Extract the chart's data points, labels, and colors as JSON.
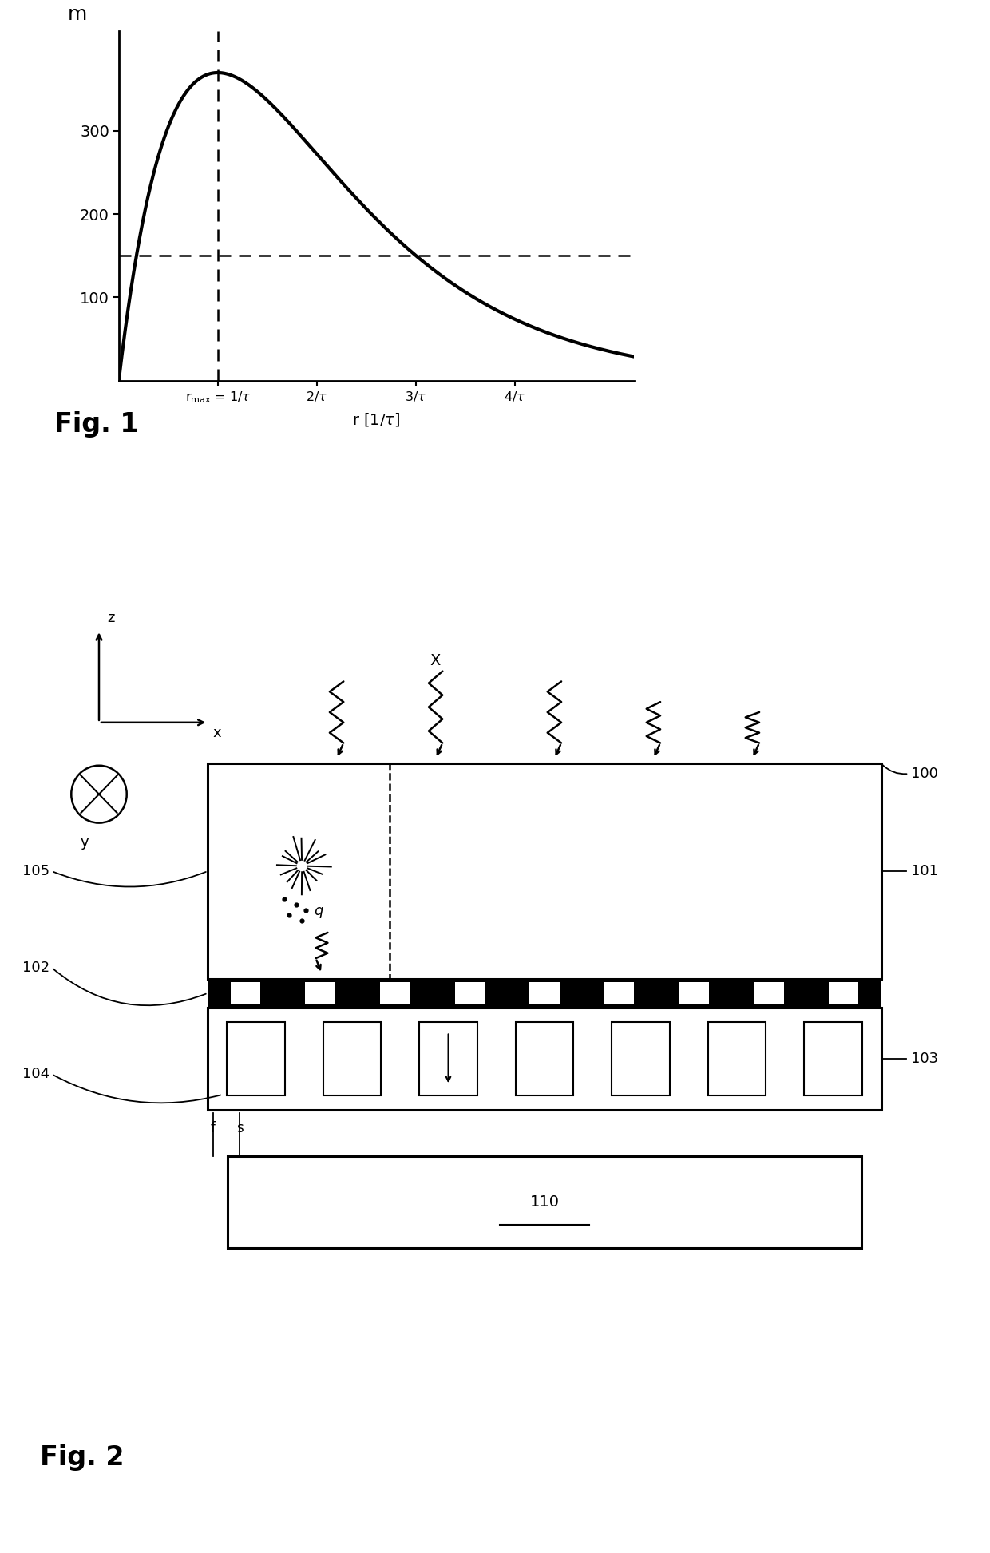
{
  "fig_width": 12.4,
  "fig_height": 19.45,
  "bg_color": "#ffffff",
  "plot1": {
    "ylabel": "m",
    "xlabel": "r [1/τ]",
    "yticks": [
      100,
      200,
      300
    ],
    "curve_color": "#000000",
    "peak_y": 370,
    "hline_y": 150,
    "fig1_label": "Fig. 1",
    "xlim": [
      0,
      5.2
    ],
    "ylim": [
      0,
      420
    ]
  },
  "fig2": {
    "label": "Fig. 2"
  }
}
